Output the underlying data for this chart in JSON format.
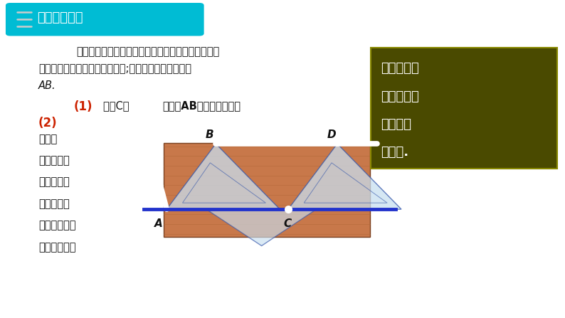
{
  "bg_color": "#ffffff",
  "header_box_color": "#00bcd4",
  "header_text": "一、合作探究",
  "header_text_color": "#ffffff",
  "body_text_1": "如图，要在长方形木板上截一个平行四边形，使它的",
  "body_text_2": "一组对边在长方形木板的边缘上;组对边中的一条边缘为",
  "body_text_3": "AB.",
  "q1_normal": "请过C点 ",
  "q1_bold": "画出与AB平行的另一条边",
  "q2_lines": [
    "如果你",
    "只有一个圆",
    "规和一把没",
    "有刻度的直",
    "尺，你能解决",
    "这个问题吗？"
  ],
  "sidebar_bg": "#4a4a00",
  "sidebar_border": "#888800",
  "sidebar_lines": [
    "用直尺与三",
    "角板你画得",
    "出来吗？",
    "试一试."
  ],
  "sidebar_text_color": "#ffffff",
  "wood_color": "#c8784a",
  "wood_dark": "#b06535",
  "tri_fill": "#c8dff0",
  "tri_edge": "#3355aa",
  "tri_alpha": 0.75,
  "white_line": "#ffffff",
  "blue_line": "#2233cc",
  "label_color": "#111111",
  "red_label": "#cc2200",
  "icon_color": "#cccccc"
}
